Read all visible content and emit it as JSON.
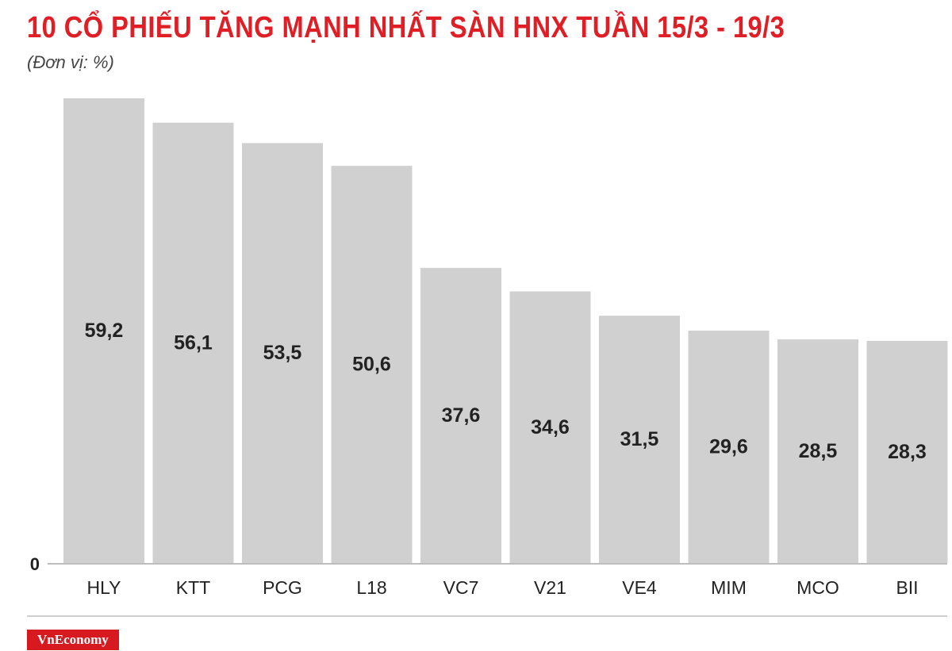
{
  "header": {
    "title": "10 CỔ PHIẾU TĂNG MẠNH NHẤT SÀN HNX TUẦN 15/3 - 19/3",
    "subtitle": "(Đơn vị: %)"
  },
  "footer": {
    "brand": "VnEconomy"
  },
  "colors": {
    "title": "#e01e25",
    "bar": "#d0d0d0",
    "label": "#222222",
    "brand_bg": "#d71920"
  },
  "chart_data": {
    "type": "bar",
    "categories": [
      "HLY",
      "KTT",
      "PCG",
      "L18",
      "VC7",
      "V21",
      "VE4",
      "MIM",
      "MCO",
      "BII"
    ],
    "values": [
      59.2,
      56.1,
      53.5,
      50.6,
      37.6,
      34.6,
      31.5,
      29.6,
      28.5,
      28.3
    ],
    "value_labels": [
      "59,2",
      "56,1",
      "53,5",
      "50,6",
      "37,6",
      "34,6",
      "31,5",
      "29,6",
      "28,5",
      "28,3"
    ],
    "yticks": [
      "0"
    ],
    "ylim": [
      0,
      59.2
    ],
    "grid": false,
    "legend": "none"
  }
}
